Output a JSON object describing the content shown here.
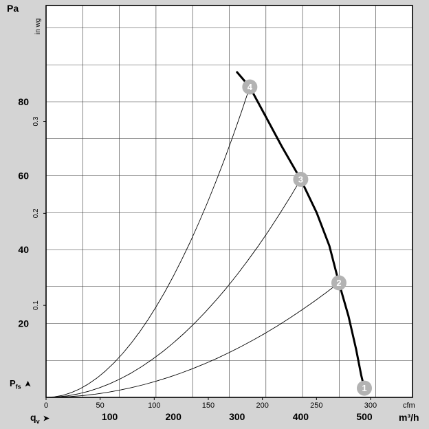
{
  "labels": {
    "y_unit_primary": "Pa",
    "y_unit_secondary": "in wg",
    "y_symbol_base": "P",
    "y_symbol_sub": "fs",
    "x_symbol_base": "q",
    "x_symbol_sub": "v",
    "x_unit_primary": "m³/h",
    "x_unit_secondary": "cfm",
    "arrow": "➤"
  },
  "chart_data": {
    "type": "line",
    "x_axis": {
      "primary": {
        "unit": "m³/h",
        "ticks": [
          100,
          200,
          300,
          400,
          500
        ],
        "range": [
          0,
          575
        ]
      },
      "secondary": {
        "unit": "cfm",
        "ticks": [
          0,
          50,
          100,
          150,
          200,
          250,
          300
        ]
      },
      "symbol": "qv"
    },
    "y_axis": {
      "primary": {
        "unit": "Pa",
        "ticks": [
          20,
          40,
          60,
          80
        ],
        "range": [
          0,
          106
        ]
      },
      "secondary": {
        "unit": "in wg",
        "ticks": [
          0.1,
          0.2,
          0.3
        ]
      },
      "symbol": "Pfs"
    },
    "grid": true,
    "series": [
      {
        "name": "fan-curve",
        "style": "thick",
        "points_m3h_pa": [
          [
            300,
            88
          ],
          [
            320,
            84
          ],
          [
            345,
            76
          ],
          [
            370,
            68
          ],
          [
            400,
            59
          ],
          [
            425,
            50
          ],
          [
            445,
            41
          ],
          [
            460,
            31
          ],
          [
            475,
            22
          ],
          [
            487,
            13
          ],
          [
            495,
            6
          ],
          [
            500,
            2.5
          ]
        ]
      },
      {
        "name": "system-curve-4",
        "style": "thin",
        "parabola_end_m3h_pa": [
          320,
          84
        ]
      },
      {
        "name": "system-curve-3",
        "style": "thin",
        "parabola_end_m3h_pa": [
          400,
          59
        ]
      },
      {
        "name": "system-curve-2",
        "style": "thin",
        "parabola_end_m3h_pa": [
          460,
          31
        ]
      }
    ],
    "operating_points": [
      {
        "label": "1",
        "m3h": 500,
        "pa": 2.5
      },
      {
        "label": "2",
        "m3h": 460,
        "pa": 31
      },
      {
        "label": "3",
        "m3h": 400,
        "pa": 59
      },
      {
        "label": "4",
        "m3h": 320,
        "pa": 84
      }
    ],
    "colors": {
      "curve": "#000000",
      "grid": "#333333",
      "marker_fill": "#b3b3b3",
      "marker_text": "#ffffff",
      "plot_bg": "#ffffff",
      "page_bg": "#d4d4d4"
    }
  }
}
